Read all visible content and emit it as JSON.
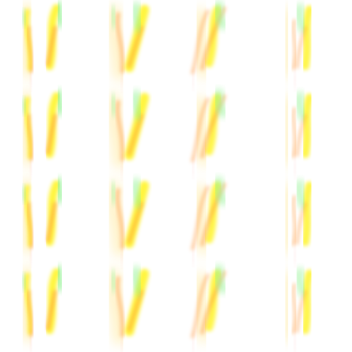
{
  "sprite_sheet": {
    "grid": {
      "columns": 4,
      "rows": 4
    },
    "variants": [
      "flame-variant-a",
      "flame-variant-b",
      "flame-variant-c",
      "flame-variant-d"
    ],
    "colors": {
      "background": "#ffffff",
      "outer_glow": "#ffe27a",
      "core_yellow": "#fff200",
      "core_orange": "#ff9a3c",
      "ember_red": "#ff6b6b",
      "tip_green": "#8ef28e"
    },
    "icon_name": "flame-sprite-icon"
  }
}
